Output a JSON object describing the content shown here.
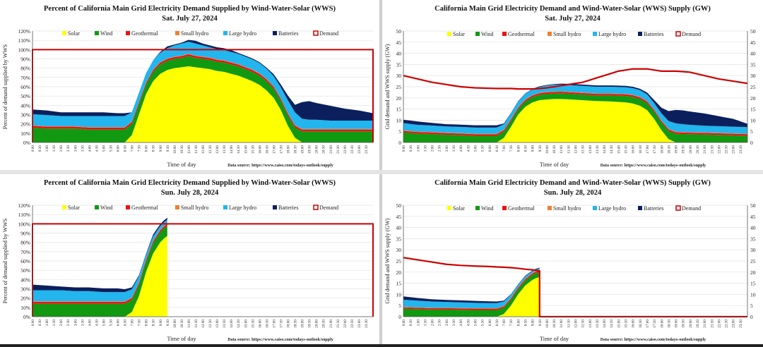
{
  "colors": {
    "solar": "#ffff00",
    "wind": "#119911",
    "geothermal": "#ee1111",
    "small_hydro": "#f08030",
    "large_hydro": "#22b5ee",
    "batteries": "#0b1f5c",
    "demand": "#cc0000"
  },
  "legend_labels": [
    "Solar",
    "Wind",
    "Geothermal",
    "Small hydro",
    "Large hydro",
    "Batteries",
    "Demand"
  ],
  "source_note": "Data source: https://www.caiso.com/todays-outlook/supply",
  "time_labels": [
    "0:00",
    "0:30",
    "1:00",
    "1:30",
    "2:00",
    "2:30",
    "3:00",
    "3:30",
    "4:00",
    "4:30",
    "5:00",
    "5:30",
    "6:00",
    "6:30",
    "7:00",
    "7:30",
    "8:00",
    "8:30",
    "9:00",
    "9:30",
    "10:00",
    "10:30",
    "11:00",
    "11:30",
    "12:00",
    "12:30",
    "13:00",
    "13:30",
    "14:00",
    "14:30",
    "15:00",
    "15:30",
    "16:00",
    "16:30",
    "17:00",
    "17:30",
    "18:00",
    "18:30",
    "19:00",
    "19:30",
    "20:00",
    "20:30",
    "21:00",
    "21:30",
    "22:00",
    "22:30",
    "23:00",
    "23:30"
  ],
  "chart_data": [
    {
      "type": "area",
      "title": "Percent of California Main Grid Electricity Demand Supplied by Wind-Water-Solar (WWS)",
      "subtitle": "Sat. July 27, 2024",
      "xlabel": "Time of day",
      "ylabel": "Percent of demand supplied by WWS",
      "ylim": [
        0,
        120
      ],
      "yticks": [
        "0%",
        "10%",
        "20%",
        "30%",
        "40%",
        "50%",
        "60%",
        "70%",
        "80%",
        "90%",
        "100%",
        "110%",
        "120%"
      ],
      "right_axis": false,
      "x_hours": [
        0,
        1,
        2,
        3,
        4,
        5,
        6,
        6.5,
        7,
        7.5,
        8,
        8.5,
        9,
        9.5,
        10,
        10.5,
        11,
        11.5,
        12,
        12.5,
        13,
        13.5,
        14,
        14.5,
        15,
        15.5,
        16,
        16.5,
        17,
        17.5,
        18,
        18.5,
        19,
        19.5,
        20,
        21,
        22,
        23,
        24
      ],
      "series": [
        {
          "name": "Solar",
          "values": [
            0,
            0,
            0,
            0,
            0,
            0,
            0,
            0,
            8,
            30,
            52,
            66,
            74,
            78,
            80,
            81,
            82,
            81,
            80,
            79,
            77,
            76,
            74,
            72,
            69,
            66,
            62,
            56,
            48,
            35,
            18,
            5,
            0,
            0,
            0,
            0,
            0,
            0,
            0
          ]
        },
        {
          "name": "Wind",
          "values": [
            16,
            15,
            15,
            15,
            14,
            14,
            14,
            14,
            12,
            11,
            10,
            10,
            10,
            10,
            10,
            10,
            11,
            10,
            10,
            10,
            10,
            10,
            10,
            10,
            10,
            10,
            10,
            10,
            10,
            10,
            11,
            11,
            12,
            12,
            12,
            12,
            12,
            12,
            12
          ]
        },
        {
          "name": "Geothermal",
          "values": [
            2,
            2,
            2,
            2,
            2,
            2,
            2,
            2,
            2,
            2,
            2,
            2,
            2,
            2,
            2,
            2,
            2,
            2,
            2,
            2,
            2,
            2,
            2,
            2,
            2,
            2,
            2,
            2,
            2,
            2,
            2,
            2,
            2,
            2,
            2,
            2,
            2,
            2,
            2
          ]
        },
        {
          "name": "Small hydro",
          "values": [
            0.5,
            0.5,
            0.5,
            0.5,
            0.5,
            0.5,
            0.5,
            0.5,
            0.5,
            0.5,
            0.5,
            0.5,
            0.5,
            0.5,
            0.5,
            0.5,
            0.5,
            0.5,
            0.5,
            0.5,
            0.5,
            0.5,
            0.5,
            0.5,
            0.5,
            0.5,
            0.5,
            0.5,
            0.5,
            0.5,
            0.5,
            0.5,
            0.5,
            0.5,
            0.5,
            0.5,
            0.5,
            0.5,
            0.5
          ]
        },
        {
          "name": "Large hydro",
          "values": [
            12,
            12,
            11,
            11,
            12,
            12,
            12,
            12,
            10,
            10,
            10,
            10,
            10,
            11,
            12,
            13,
            13,
            13,
            12,
            11,
            11,
            11,
            11,
            11,
            11,
            11,
            11,
            11,
            11,
            12,
            14,
            14,
            11,
            10,
            10,
            9,
            9,
            9,
            9
          ]
        },
        {
          "name": "Batteries",
          "values": [
            5,
            5,
            4,
            4,
            4,
            4,
            3,
            3,
            0,
            0,
            0,
            0,
            1,
            2,
            1,
            1,
            2,
            3,
            2,
            2,
            2,
            2,
            2,
            1,
            1,
            1,
            1,
            1,
            2,
            3,
            5,
            8,
            18,
            20,
            18,
            16,
            13,
            11,
            8
          ]
        },
        {
          "name": "Demand",
          "values": [
            100,
            100,
            100,
            100,
            100,
            100,
            100,
            100,
            100,
            100,
            100,
            100,
            100,
            100,
            100,
            100,
            100,
            100,
            100,
            100,
            100,
            100,
            100,
            100,
            100,
            100,
            100,
            100,
            100,
            100,
            100,
            100,
            100,
            100,
            100,
            100,
            100,
            100,
            100
          ]
        }
      ]
    },
    {
      "type": "area",
      "title": "California Main Grid Electricity Demand and Wind-Water-Solar (WWS) Supply (GW)",
      "subtitle": "Sat. July 27, 2024",
      "xlabel": "Time of day",
      "ylabel": "Grid demand and WWS supply (GW)",
      "ylim": [
        0,
        50
      ],
      "yticks": [
        "0",
        "5",
        "10",
        "15",
        "20",
        "25",
        "30",
        "35",
        "40",
        "45",
        "50"
      ],
      "right_axis": true,
      "x_hours": [
        0,
        1,
        2,
        3,
        4,
        5,
        6,
        6.5,
        7,
        7.5,
        8,
        8.5,
        9,
        9.5,
        10,
        10.5,
        11,
        11.5,
        12,
        12.5,
        13,
        13.5,
        14,
        14.5,
        15,
        15.5,
        16,
        16.5,
        17,
        17.5,
        18,
        18.5,
        19,
        19.5,
        20,
        21,
        22,
        23,
        24
      ],
      "series": [
        {
          "name": "Solar",
          "values": [
            0,
            0,
            0,
            0,
            0,
            0,
            0,
            0,
            2,
            7,
            12.5,
            16,
            18,
            19,
            19.3,
            19.5,
            19.5,
            19.4,
            19.2,
            19,
            18.8,
            18.6,
            18.5,
            18.4,
            18.2,
            18,
            17.5,
            16.5,
            14.5,
            10.5,
            5.5,
            1.5,
            0,
            0,
            0,
            0,
            0,
            0,
            0
          ]
        },
        {
          "name": "Wind",
          "values": [
            4.5,
            4,
            3.8,
            3.5,
            3.3,
            3,
            3,
            3,
            2.8,
            2.6,
            2.4,
            2.4,
            2.4,
            2.4,
            2.5,
            2.5,
            2.6,
            2.5,
            2.5,
            2.5,
            2.5,
            2.5,
            2.6,
            2.7,
            2.8,
            2.9,
            3,
            3.1,
            3.2,
            3.3,
            3.5,
            3.7,
            3.9,
            3.8,
            3.7,
            3.6,
            3.4,
            3.2,
            3
          ]
        },
        {
          "name": "Geothermal",
          "values": [
            0.7,
            0.7,
            0.7,
            0.7,
            0.7,
            0.7,
            0.7,
            0.7,
            0.7,
            0.7,
            0.7,
            0.7,
            0.7,
            0.7,
            0.7,
            0.7,
            0.7,
            0.7,
            0.7,
            0.7,
            0.7,
            0.7,
            0.7,
            0.7,
            0.7,
            0.7,
            0.7,
            0.7,
            0.7,
            0.7,
            0.7,
            0.7,
            0.7,
            0.7,
            0.7,
            0.7,
            0.7,
            0.7,
            0.7
          ]
        },
        {
          "name": "Small hydro",
          "values": [
            0.2,
            0.2,
            0.2,
            0.2,
            0.2,
            0.2,
            0.2,
            0.2,
            0.2,
            0.2,
            0.2,
            0.2,
            0.2,
            0.2,
            0.2,
            0.2,
            0.2,
            0.2,
            0.2,
            0.2,
            0.2,
            0.2,
            0.2,
            0.2,
            0.2,
            0.2,
            0.2,
            0.2,
            0.2,
            0.2,
            0.2,
            0.2,
            0.2,
            0.2,
            0.2,
            0.2,
            0.2,
            0.2,
            0.2
          ]
        },
        {
          "name": "Large hydro",
          "values": [
            3.3,
            3,
            2.9,
            2.8,
            2.8,
            2.8,
            2.8,
            2.8,
            2.5,
            2.5,
            2.5,
            2.5,
            2.5,
            2.6,
            2.8,
            3,
            3,
            3,
            3,
            3,
            3,
            3,
            3,
            3,
            3,
            3,
            3,
            3,
            3,
            3,
            3.2,
            3.5,
            3.8,
            3.5,
            3.3,
            3,
            3,
            3,
            3
          ]
        },
        {
          "name": "Batteries",
          "values": [
            1.5,
            1.5,
            1.2,
            1,
            1,
            1,
            1,
            1,
            0.3,
            0.2,
            0.2,
            0.2,
            0.2,
            0.3,
            0.3,
            0.3,
            0.4,
            0.5,
            0.6,
            0.6,
            0.6,
            0.6,
            0.6,
            0.6,
            0.6,
            0.6,
            0.6,
            0.6,
            0.8,
            1.3,
            2.5,
            4.5,
            6,
            6.2,
            6,
            5.5,
            4.5,
            3.5,
            1.5
          ]
        },
        {
          "name": "Demand",
          "values": [
            30,
            28.5,
            27,
            26,
            25,
            24.5,
            24.3,
            24.2,
            24.2,
            24.2,
            24,
            24,
            24,
            24.2,
            24.5,
            25,
            25.5,
            26,
            26.5,
            27,
            28,
            29,
            30,
            31,
            32,
            32.5,
            33,
            33,
            33,
            32.5,
            32,
            32,
            32,
            31.8,
            31.5,
            30,
            28.5,
            27.5,
            26.5
          ]
        }
      ]
    },
    {
      "type": "area",
      "title": "Percent of California Main Grid Electricity Demand Supplied by Wind-Water-Solar (WWS)",
      "subtitle": "Sun. July 28, 2024",
      "xlabel": "Time of day",
      "ylabel": "Percent of demand supplied by WWS",
      "ylim": [
        0,
        120
      ],
      "yticks": [
        "0%",
        "10%",
        "20%",
        "30%",
        "40%",
        "50%",
        "60%",
        "70%",
        "80%",
        "90%",
        "100%",
        "110%",
        "120%"
      ],
      "right_axis": false,
      "x_hours": [
        0,
        1,
        2,
        3,
        4,
        5,
        6,
        6.5,
        7,
        7.5,
        8,
        8.5,
        9,
        9.25,
        9.5
      ],
      "series": [
        {
          "name": "Solar",
          "values": [
            0,
            0,
            0,
            0,
            0,
            0,
            0,
            0,
            5,
            22,
            48,
            68,
            80,
            84,
            87
          ]
        },
        {
          "name": "Wind",
          "values": [
            14,
            14,
            14,
            14,
            14,
            14,
            14,
            14,
            13,
            12,
            11,
            11,
            11,
            11,
            11
          ]
        },
        {
          "name": "Geothermal",
          "values": [
            2,
            2,
            2,
            2,
            2,
            2,
            2,
            2,
            2,
            2,
            2,
            2,
            2,
            2,
            2
          ]
        },
        {
          "name": "Small hydro",
          "values": [
            0.5,
            0.5,
            0.5,
            0.5,
            0.5,
            0.5,
            0.5,
            0.5,
            0.5,
            0.5,
            0.5,
            0.5,
            0.5,
            0.5,
            0.5
          ]
        },
        {
          "name": "Large hydro",
          "values": [
            12,
            12,
            12,
            11,
            11,
            10,
            10,
            10,
            9,
            7,
            5,
            5,
            4,
            4,
            4
          ]
        },
        {
          "name": "Batteries",
          "values": [
            6,
            5,
            4,
            4,
            4,
            4,
            4,
            3,
            2,
            1,
            1,
            2,
            2,
            2,
            2
          ]
        },
        {
          "name": "Demand",
          "values": [
            100,
            100,
            100,
            100,
            100,
            100,
            100,
            100,
            100,
            100,
            100,
            100,
            100,
            100,
            100
          ]
        }
      ]
    },
    {
      "type": "area",
      "title": "California Main Grid Electricity Demand and Wind-Water-Solar (WWS) Supply (GW)",
      "subtitle": "Sun. July 28, 2024",
      "xlabel": "Time of day",
      "ylabel": "Grid demand and WWS supply (GW)",
      "ylim": [
        0,
        50
      ],
      "yticks": [
        "0",
        "5",
        "10",
        "15",
        "20",
        "25",
        "30",
        "35",
        "40",
        "45",
        "50"
      ],
      "right_axis": true,
      "x_hours": [
        0,
        1,
        2,
        3,
        4,
        5,
        6,
        6.5,
        7,
        7.5,
        8,
        8.5,
        9,
        9.25,
        9.5
      ],
      "series": [
        {
          "name": "Solar",
          "values": [
            0,
            0,
            0,
            0,
            0,
            0,
            0,
            0,
            1.2,
            5,
            10,
            14,
            16.5,
            17.3,
            17.8
          ]
        },
        {
          "name": "Wind",
          "values": [
            3.6,
            3.4,
            3.2,
            3.2,
            3.1,
            3,
            3,
            3,
            2.8,
            2.6,
            2.4,
            2.3,
            2.3,
            2.3,
            2.3
          ]
        },
        {
          "name": "Geothermal",
          "values": [
            0.6,
            0.6,
            0.6,
            0.6,
            0.6,
            0.6,
            0.6,
            0.6,
            0.6,
            0.6,
            0.6,
            0.6,
            0.6,
            0.6,
            0.6
          ]
        },
        {
          "name": "Small hydro",
          "values": [
            0.2,
            0.2,
            0.2,
            0.2,
            0.2,
            0.2,
            0.2,
            0.2,
            0.2,
            0.2,
            0.2,
            0.2,
            0.2,
            0.2,
            0.2
          ]
        },
        {
          "name": "Large hydro",
          "values": [
            3.2,
            3,
            2.8,
            2.6,
            2.5,
            2.4,
            2.3,
            2.3,
            2,
            1.5,
            1.1,
            1,
            0.8,
            0.8,
            0.8
          ]
        },
        {
          "name": "Batteries",
          "values": [
            1.5,
            1.2,
            1,
            0.9,
            0.9,
            0.9,
            0.8,
            0.7,
            0.4,
            0.2,
            0.2,
            0.3,
            0.3,
            0.3,
            0.3
          ]
        },
        {
          "name": "Demand",
          "values": [
            26.5,
            25.5,
            24.5,
            23.5,
            23,
            22.7,
            22.5,
            22.3,
            22.2,
            22,
            21.7,
            21.3,
            21,
            20.8,
            20.5
          ]
        }
      ]
    }
  ]
}
